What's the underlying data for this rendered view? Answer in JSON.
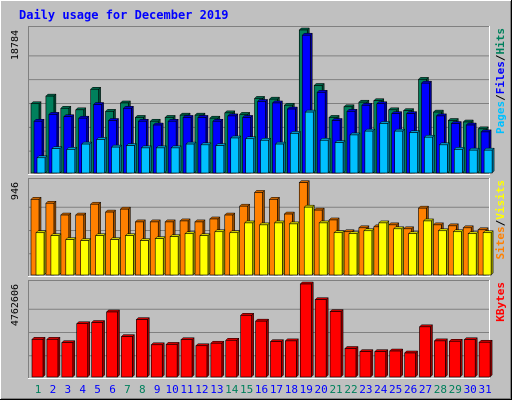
{
  "colors": {
    "background": "#c0c0c0",
    "title": "#0000ff",
    "hits": "#00805c",
    "files": "#0000ff",
    "pages": "#00c0ff",
    "visits": "#ffff00",
    "sites": "#ff8000",
    "kbytes": "#ff0000",
    "grid": "#808080",
    "weekend_day": "#00805c",
    "weekday_day": "#0000ff"
  },
  "chart_data": {
    "type": "bar",
    "title": "Daily usage for December 2019",
    "x": [
      1,
      2,
      3,
      4,
      5,
      6,
      7,
      8,
      9,
      10,
      11,
      12,
      13,
      14,
      15,
      16,
      17,
      18,
      19,
      20,
      21,
      22,
      23,
      24,
      25,
      26,
      27,
      28,
      29,
      30,
      31
    ],
    "weekend_days": [
      1,
      7,
      8,
      14,
      15,
      21,
      22,
      28,
      29
    ],
    "panels": [
      {
        "id": "top",
        "ylim": [
          0,
          18784
        ],
        "ymax_label": "18784",
        "right_labels": [
          "Pages",
          "Files",
          "Hits"
        ],
        "series": [
          {
            "name": "Hits",
            "values": [
              9100,
              10100,
              8500,
              8300,
              11000,
              8100,
              9200,
              7300,
              6800,
              7300,
              7600,
              7600,
              7200,
              7900,
              7700,
              9800,
              9700,
              8900,
              18784,
              11500,
              7300,
              8700,
              9300,
              9500,
              8300,
              8200,
              12300,
              8000,
              6900,
              6700,
              5800
            ]
          },
          {
            "name": "Files",
            "values": [
              6800,
              7700,
              7400,
              7200,
              9000,
              6900,
              8500,
              6800,
              6300,
              6800,
              7300,
              7300,
              6800,
              7500,
              7300,
              9400,
              9200,
              8400,
              18100,
              10600,
              6900,
              8100,
              8900,
              9100,
              7800,
              7800,
              11800,
              7500,
              6500,
              6300,
              5400
            ]
          },
          {
            "name": "Pages",
            "values": [
              2000,
              3200,
              3100,
              3800,
              4400,
              3400,
              3600,
              3300,
              3300,
              3300,
              3800,
              3700,
              3600,
              4600,
              4500,
              4300,
              3800,
              5200,
              8000,
              4300,
              4000,
              5000,
              5500,
              6500,
              5500,
              5300,
              4700,
              3700,
              3100,
              3000,
              3000
            ]
          }
        ]
      },
      {
        "id": "middle",
        "ylim": [
          0,
          946
        ],
        "ymax_label": "946",
        "right_labels": [
          "Sites",
          "Visits"
        ],
        "series": [
          {
            "name": "Sites",
            "values": [
              770,
              730,
              610,
              610,
              720,
              640,
              670,
              540,
              540,
              540,
              550,
              540,
              570,
              610,
              700,
              840,
              770,
              620,
              940,
              660,
              560,
              440,
              480,
              490,
              510,
              470,
              680,
              510,
              500,
              480,
              460
            ]
          },
          {
            "name": "Visits",
            "values": [
              430,
              400,
              360,
              350,
              400,
              360,
              400,
              350,
              370,
              390,
              420,
              400,
              440,
              430,
              530,
              510,
              530,
              520,
              690,
              530,
              430,
              420,
              450,
              530,
              470,
              420,
              550,
              450,
              440,
              420,
              430
            ]
          }
        ]
      },
      {
        "id": "bottom",
        "ylim": [
          0,
          4762606
        ],
        "ymax_label": "4762606",
        "right_labels": [
          "KBytes"
        ],
        "series": [
          {
            "name": "KBytes",
            "values": [
              1930000,
              1930000,
              1760000,
              2730000,
              2790000,
              3330000,
              2070000,
              2940000,
              1650000,
              1670000,
              1910000,
              1600000,
              1730000,
              1880000,
              3160000,
              2860000,
              1810000,
              1850000,
              4762606,
              3960000,
              3350000,
              1460000,
              1300000,
              1300000,
              1330000,
              1230000,
              2570000,
              1850000,
              1830000,
              1910000,
              1780000
            ]
          }
        ]
      }
    ]
  }
}
